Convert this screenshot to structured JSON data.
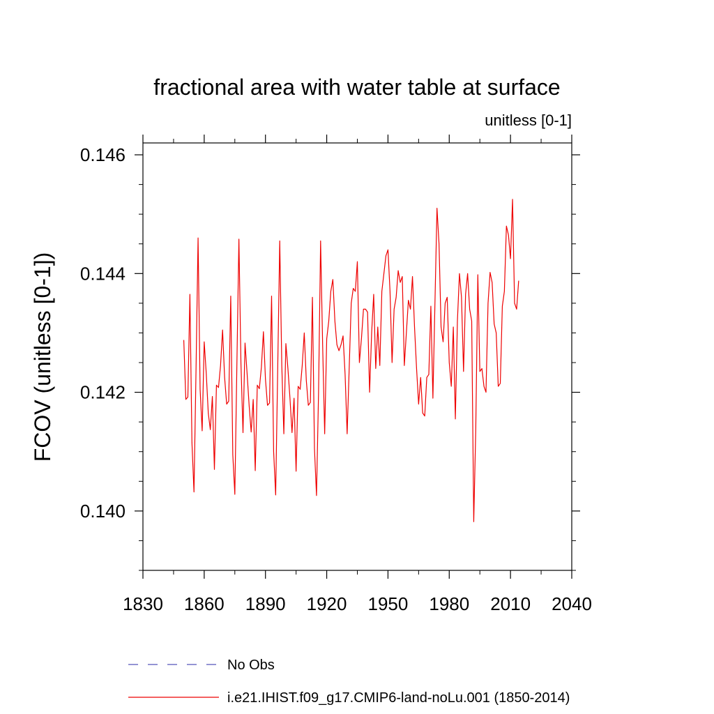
{
  "chart_data": {
    "type": "line",
    "title": "fractional area with water table at surface",
    "units_label": "unitless [0-1]",
    "ylabel": "FCOV  (unitless [0-1])",
    "xlabel": "",
    "xlim": [
      1830,
      2040
    ],
    "ylim": [
      0.139,
      0.1462
    ],
    "x_ticks": [
      1830,
      1860,
      1890,
      1920,
      1950,
      1980,
      2010,
      2040
    ],
    "x_tick_labels": [
      "1830",
      "1860",
      "1890",
      "1920",
      "1950",
      "1980",
      "2010",
      "2040"
    ],
    "y_ticks": [
      0.14,
      0.142,
      0.144,
      0.146
    ],
    "y_tick_labels": [
      "0.140",
      "0.142",
      "0.144",
      "0.146"
    ],
    "grid": false,
    "legend_placement": "bottom",
    "series": [
      {
        "name": "No Obs",
        "color": "#5555bb",
        "dash": "dashed",
        "x": [],
        "values": []
      },
      {
        "name": "i.e21.IHIST.f09_g17.CMIP6-land-noLu.001 (1850-2014)",
        "color": "#ee0000",
        "dash": "solid",
        "x": [
          1850,
          1851,
          1852,
          1853,
          1854,
          1855,
          1856,
          1857,
          1858,
          1859,
          1860,
          1861,
          1862,
          1863,
          1864,
          1865,
          1866,
          1867,
          1868,
          1869,
          1870,
          1871,
          1872,
          1873,
          1874,
          1875,
          1876,
          1877,
          1878,
          1879,
          1880,
          1881,
          1882,
          1883,
          1884,
          1885,
          1886,
          1887,
          1888,
          1889,
          1890,
          1891,
          1892,
          1893,
          1894,
          1895,
          1896,
          1897,
          1898,
          1899,
          1900,
          1901,
          1902,
          1903,
          1904,
          1905,
          1906,
          1907,
          1908,
          1909,
          1910,
          1911,
          1912,
          1913,
          1914,
          1915,
          1916,
          1917,
          1918,
          1919,
          1920,
          1921,
          1922,
          1923,
          1924,
          1925,
          1926,
          1927,
          1928,
          1929,
          1930,
          1931,
          1932,
          1933,
          1934,
          1935,
          1936,
          1937,
          1938,
          1939,
          1940,
          1941,
          1942,
          1943,
          1944,
          1945,
          1946,
          1947,
          1948,
          1949,
          1950,
          1951,
          1952,
          1953,
          1954,
          1955,
          1956,
          1957,
          1958,
          1959,
          1960,
          1961,
          1962,
          1963,
          1964,
          1965,
          1966,
          1967,
          1968,
          1969,
          1970,
          1971,
          1972,
          1973,
          1974,
          1975,
          1976,
          1977,
          1978,
          1979,
          1980,
          1981,
          1982,
          1983,
          1984,
          1985,
          1986,
          1987,
          1988,
          1989,
          1990,
          1991,
          1992,
          1993,
          1994,
          1995,
          1996,
          1997,
          1998,
          1999,
          2000,
          2001,
          2002,
          2003,
          2004,
          2005,
          2006,
          2007,
          2008,
          2009,
          2010,
          2011,
          2012,
          2013,
          2014
        ],
        "values": [
          0.14288,
          0.14188,
          0.14192,
          0.14365,
          0.14115,
          0.14032,
          0.14238,
          0.1446,
          0.14205,
          0.14135,
          0.14285,
          0.14232,
          0.14165,
          0.14137,
          0.14193,
          0.1407,
          0.14212,
          0.14208,
          0.14245,
          0.14305,
          0.14225,
          0.1418,
          0.14185,
          0.14362,
          0.14095,
          0.14028,
          0.14245,
          0.14458,
          0.14248,
          0.14132,
          0.14283,
          0.14232,
          0.14178,
          0.14133,
          0.14188,
          0.14068,
          0.14212,
          0.14206,
          0.14242,
          0.14302,
          0.14222,
          0.14178,
          0.14182,
          0.14362,
          0.141,
          0.14027,
          0.1424,
          0.14455,
          0.14245,
          0.1413,
          0.14282,
          0.1424,
          0.1419,
          0.14132,
          0.1419,
          0.14067,
          0.1421,
          0.14205,
          0.14245,
          0.143,
          0.1422,
          0.14178,
          0.14183,
          0.1436,
          0.14105,
          0.14026,
          0.142,
          0.14455,
          0.1428,
          0.1413,
          0.1429,
          0.1432,
          0.1437,
          0.1439,
          0.1432,
          0.1428,
          0.1427,
          0.1428,
          0.14295,
          0.1423,
          0.1413,
          0.1424,
          0.1435,
          0.14375,
          0.1437,
          0.1442,
          0.1425,
          0.1429,
          0.1434,
          0.1434,
          0.14335,
          0.142,
          0.143,
          0.14365,
          0.1424,
          0.1431,
          0.14245,
          0.1437,
          0.144,
          0.1443,
          0.1444,
          0.1437,
          0.1425,
          0.1434,
          0.1436,
          0.14405,
          0.14385,
          0.14395,
          0.14245,
          0.143,
          0.14355,
          0.1434,
          0.14395,
          0.1431,
          0.1424,
          0.1418,
          0.14225,
          0.14165,
          0.1416,
          0.14225,
          0.1423,
          0.14345,
          0.1419,
          0.1435,
          0.1451,
          0.1445,
          0.1431,
          0.14285,
          0.1435,
          0.1436,
          0.1425,
          0.1421,
          0.1431,
          0.14155,
          0.1432,
          0.144,
          0.1436,
          0.14235,
          0.14365,
          0.144,
          0.1434,
          0.1432,
          0.13982,
          0.1414,
          0.14398,
          0.14235,
          0.1424,
          0.1421,
          0.142,
          0.1435,
          0.14402,
          0.14385,
          0.14315,
          0.143,
          0.1421,
          0.14215,
          0.14345,
          0.1437,
          0.1448,
          0.14465,
          0.14425,
          0.14525,
          0.1435,
          0.1434,
          0.14388
        ]
      }
    ]
  }
}
